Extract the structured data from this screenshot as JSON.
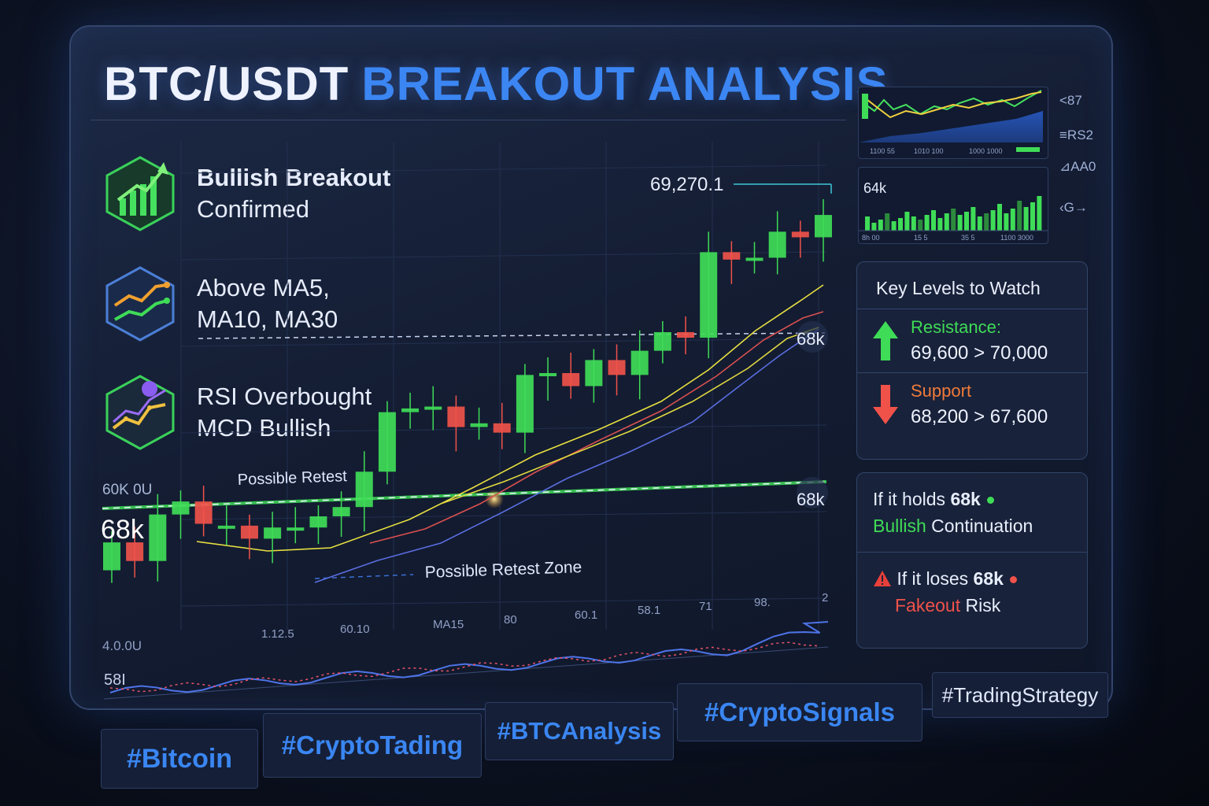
{
  "title": {
    "part1": "BTC/USDT",
    "part2": "BREAKOUT ANALYSIS"
  },
  "features": [
    {
      "icon": "bars-up-arrow-icon",
      "line1": "Bullish Breakout",
      "line2": "Confirmed"
    },
    {
      "icon": "moving-average-lines-icon",
      "line1": "Above MA5,",
      "line2": "MA10, MA30"
    },
    {
      "icon": "rsi-oscillator-icon",
      "line1": "RSI Overbought",
      "line2": "MCD Bullish"
    }
  ],
  "chart": {
    "price_label": "69,270.1",
    "level_68k_left": "68k",
    "level_68k_right_top": "68k",
    "level_68k_right_mid": "68k",
    "axis_left_top": "60K  0U",
    "axis_left_bottom": "4.0.0U",
    "possible_retest": "Possible Retest",
    "retest_zone": "Possible Retest Zone",
    "x_ticks": [
      "1.12.5",
      "60.10",
      "MA15",
      "80",
      "60.1",
      "58.1",
      "71",
      "98.",
      "2"
    ],
    "indicator_label": "58I",
    "mini1_ticks": [
      "1100  55",
      "1010  100",
      "1000  1000"
    ],
    "mini2_label": "64k",
    "mini2_ticks": [
      "8h 00",
      "15  5",
      "35  5",
      "1100  3000"
    ]
  },
  "chart_data": {
    "type": "candlestick",
    "description_levels": {
      "support_zone": 68000,
      "last_price": 69270.1
    },
    "candles": [
      {
        "o": 67650,
        "c": 67800,
        "dir": "up"
      },
      {
        "o": 67800,
        "c": 67700,
        "dir": "down"
      },
      {
        "o": 67700,
        "c": 67950,
        "dir": "up"
      },
      {
        "o": 67950,
        "c": 68020,
        "dir": "up"
      },
      {
        "o": 68020,
        "c": 67900,
        "dir": "down"
      },
      {
        "o": 67880,
        "c": 67890,
        "dir": "flat"
      },
      {
        "o": 67890,
        "c": 67820,
        "dir": "down"
      },
      {
        "o": 67820,
        "c": 67880,
        "dir": "up"
      },
      {
        "o": 67880,
        "c": 67880,
        "dir": "flat"
      },
      {
        "o": 67880,
        "c": 67940,
        "dir": "up"
      },
      {
        "o": 67940,
        "c": 67990,
        "dir": "up"
      },
      {
        "o": 67990,
        "c": 68180,
        "dir": "up"
      },
      {
        "o": 68180,
        "c": 68500,
        "dir": "up"
      },
      {
        "o": 68500,
        "c": 68520,
        "dir": "up"
      },
      {
        "o": 68520,
        "c": 68530,
        "dir": "flat"
      },
      {
        "o": 68530,
        "c": 68420,
        "dir": "down"
      },
      {
        "o": 68420,
        "c": 68440,
        "dir": "up"
      },
      {
        "o": 68440,
        "c": 68390,
        "dir": "down"
      },
      {
        "o": 68390,
        "c": 68700,
        "dir": "up"
      },
      {
        "o": 68700,
        "c": 68710,
        "dir": "flat"
      },
      {
        "o": 68710,
        "c": 68640,
        "dir": "down"
      },
      {
        "o": 68640,
        "c": 68780,
        "dir": "up"
      },
      {
        "o": 68780,
        "c": 68700,
        "dir": "down"
      },
      {
        "o": 68700,
        "c": 68830,
        "dir": "up"
      },
      {
        "o": 68830,
        "c": 68930,
        "dir": "up"
      },
      {
        "o": 68930,
        "c": 68900,
        "dir": "down"
      },
      {
        "o": 68900,
        "c": 69360,
        "dir": "up"
      },
      {
        "o": 69360,
        "c": 69320,
        "dir": "down"
      },
      {
        "o": 69320,
        "c": 69330,
        "dir": "flat"
      },
      {
        "o": 69330,
        "c": 69470,
        "dir": "up"
      },
      {
        "o": 69470,
        "c": 69440,
        "dir": "down"
      },
      {
        "o": 69440,
        "c": 69560,
        "dir": "up"
      }
    ],
    "moving_averages": [
      "MA5",
      "MA10",
      "MA30"
    ]
  },
  "side_buttons": [
    "<87",
    "≡RS2",
    "⊿AA0",
    "‹G→"
  ],
  "key_levels": {
    "title": "Key Levels to Watch",
    "resistance_label": "Resistance:",
    "resistance_value": "69,600 > 70,000",
    "support_label": "Support",
    "support_value": "68,200 > 67,600",
    "up_icon": "arrow-up-icon",
    "down_icon": "arrow-down-icon"
  },
  "scenarios": {
    "hold_prefix": "If it holds",
    "hold_level": "68k",
    "hold_result_colored": "Bullish",
    "hold_result_rest": "Continuation",
    "lose_prefix": "If it loses",
    "lose_level": "68k",
    "lose_result_colored": "Fakeout",
    "lose_result_rest": "Risk",
    "warning_icon": "warning-triangle-icon"
  },
  "hashtags": [
    "#Bitcoin",
    "#CryptoTading",
    "#BTCAnalysis",
    "#CryptoSignals",
    "#TradingStrategy"
  ],
  "colors": {
    "bull": "#3fdc57",
    "bear": "#f0524a",
    "accent": "#3b86f3"
  }
}
